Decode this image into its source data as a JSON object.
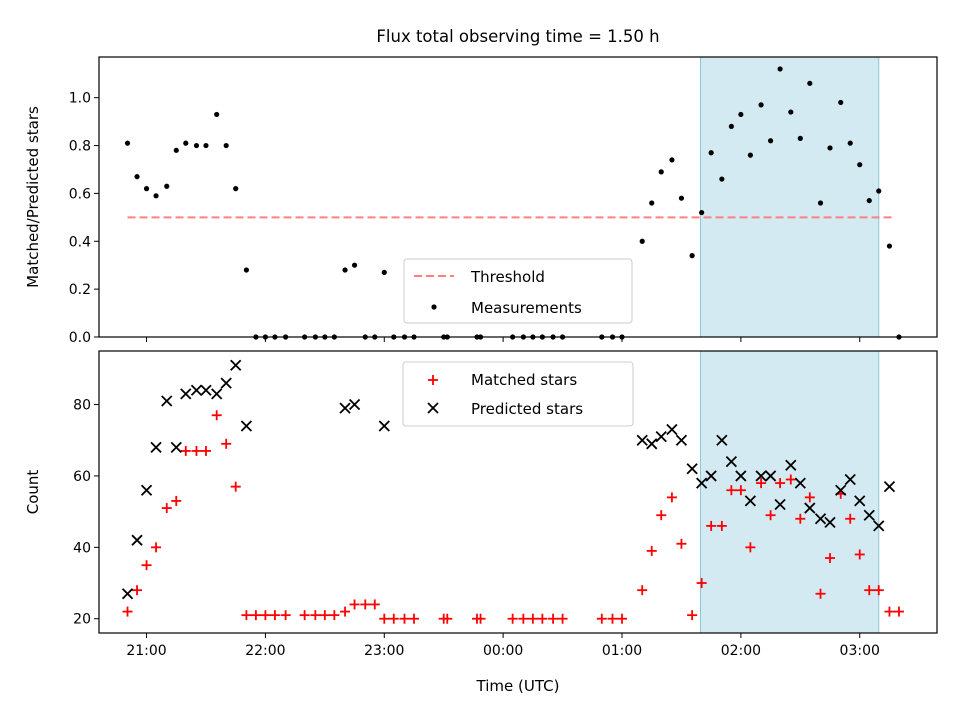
{
  "figure_title": "Flux total observing time = 1.50 h",
  "chart_data": [
    {
      "type": "scatter",
      "xlabel": "",
      "ylabel": "Matched/Predicted stars",
      "xlim_hours": [
        20.6,
        27.65
      ],
      "ylim": [
        0.0,
        1.17
      ],
      "yticks": [
        0.0,
        0.2,
        0.4,
        0.6,
        0.8,
        1.0
      ],
      "ytick_labels": [
        "0.0",
        "0.2",
        "0.4",
        "0.6",
        "0.8",
        "1.0"
      ],
      "shaded_x_range_hours": [
        25.66,
        27.16
      ],
      "shaded_color": "#add8e6",
      "legend_location": "lower center",
      "threshold": {
        "name": "Threshold",
        "y": 0.5,
        "x_range_hours": [
          20.84,
          27.28
        ],
        "color": "#ff8080",
        "style": "dashed"
      },
      "series": [
        {
          "name": "Measurements",
          "marker": "dot",
          "color": "#000000",
          "x_hours": [
            20.84,
            20.92,
            21.0,
            21.08,
            21.17,
            21.25,
            21.33,
            21.42,
            21.5,
            21.59,
            21.67,
            21.75,
            21.84,
            21.92,
            22.0,
            22.08,
            22.17,
            22.33,
            22.42,
            22.5,
            22.58,
            22.67,
            22.75,
            22.84,
            22.92,
            23.0,
            23.08,
            23.17,
            23.25,
            23.5,
            23.53,
            23.78,
            23.81,
            24.08,
            24.17,
            24.25,
            24.33,
            24.42,
            24.5,
            24.83,
            24.92,
            25.0,
            25.17,
            25.25,
            25.33,
            25.42,
            25.5,
            25.59,
            25.67,
            25.75,
            25.84,
            25.92,
            26.0,
            26.08,
            26.17,
            26.25,
            26.33,
            26.42,
            26.5,
            26.58,
            26.67,
            26.75,
            26.84,
            26.92,
            27.0,
            27.08,
            27.16,
            27.25,
            27.33
          ],
          "y": [
            0.81,
            0.67,
            0.62,
            0.59,
            0.63,
            0.78,
            0.81,
            0.8,
            0.8,
            0.93,
            0.8,
            0.62,
            0.28,
            0.0,
            0.0,
            0.0,
            0.0,
            0.0,
            0.0,
            0.0,
            0.0,
            0.28,
            0.3,
            0.0,
            0.0,
            0.27,
            0.0,
            0.0,
            0.0,
            0.0,
            0.0,
            0.0,
            0.0,
            0.0,
            0.0,
            0.0,
            0.0,
            0.0,
            0.0,
            0.0,
            0.0,
            0.0,
            0.4,
            0.56,
            0.69,
            0.74,
            0.58,
            0.34,
            0.52,
            0.77,
            0.66,
            0.88,
            0.93,
            0.76,
            0.97,
            0.82,
            1.12,
            0.94,
            0.83,
            1.06,
            0.56,
            0.79,
            0.98,
            0.81,
            0.72,
            0.57,
            0.61,
            0.38,
            0.0
          ]
        }
      ]
    },
    {
      "type": "scatter",
      "xlabel": "Time (UTC)",
      "ylabel": "Count",
      "xlim_hours": [
        20.6,
        27.65
      ],
      "ylim": [
        16,
        95
      ],
      "yticks": [
        20,
        40,
        60,
        80
      ],
      "ytick_labels": [
        "20",
        "40",
        "60",
        "80"
      ],
      "xticks_hours": [
        21,
        22,
        23,
        24,
        25,
        26,
        27
      ],
      "xtick_labels": [
        "21:00",
        "22:00",
        "23:00",
        "00:00",
        "01:00",
        "02:00",
        "03:00"
      ],
      "shaded_x_range_hours": [
        25.66,
        27.16
      ],
      "shaded_color": "#add8e6",
      "legend_location": "upper center",
      "series": [
        {
          "name": "Matched stars",
          "marker": "plus",
          "color": "#ff0000",
          "x_hours": [
            20.84,
            20.92,
            21.0,
            21.08,
            21.17,
            21.25,
            21.33,
            21.42,
            21.5,
            21.59,
            21.67,
            21.75,
            21.84,
            21.92,
            22.0,
            22.08,
            22.17,
            22.33,
            22.42,
            22.5,
            22.58,
            22.67,
            22.75,
            22.84,
            22.92,
            23.0,
            23.08,
            23.17,
            23.25,
            23.5,
            23.53,
            23.78,
            23.81,
            24.08,
            24.17,
            24.25,
            24.33,
            24.42,
            24.5,
            24.83,
            24.92,
            25.0,
            25.17,
            25.25,
            25.33,
            25.42,
            25.5,
            25.59,
            25.67,
            25.75,
            25.84,
            25.92,
            26.0,
            26.08,
            26.17,
            26.25,
            26.33,
            26.42,
            26.5,
            26.58,
            26.67,
            26.75,
            26.84,
            26.92,
            27.0,
            27.08,
            27.16,
            27.25,
            27.33
          ],
          "y": [
            22,
            28,
            35,
            40,
            51,
            53,
            67,
            67,
            67,
            77,
            69,
            57,
            21,
            21,
            21,
            21,
            21,
            21,
            21,
            21,
            21,
            22,
            24,
            24,
            24,
            20,
            20,
            20,
            20,
            20,
            20,
            20,
            20,
            20,
            20,
            20,
            20,
            20,
            20,
            20,
            20,
            20,
            28,
            39,
            49,
            54,
            41,
            21,
            30,
            46,
            46,
            56,
            56,
            40,
            58,
            49,
            58,
            59,
            48,
            54,
            27,
            37,
            55,
            48,
            38,
            28,
            28,
            22,
            22
          ]
        },
        {
          "name": "Predicted stars",
          "marker": "x",
          "color": "#000000",
          "x_hours": [
            20.84,
            20.92,
            21.0,
            21.08,
            21.17,
            21.25,
            21.33,
            21.42,
            21.5,
            21.59,
            21.67,
            21.75,
            21.84,
            22.67,
            22.75,
            23.0,
            25.17,
            25.25,
            25.33,
            25.42,
            25.5,
            25.59,
            25.67,
            25.75,
            25.84,
            25.92,
            26.0,
            26.08,
            26.17,
            26.25,
            26.33,
            26.42,
            26.5,
            26.58,
            26.67,
            26.75,
            26.84,
            26.92,
            27.0,
            27.08,
            27.16,
            27.25
          ],
          "y": [
            27,
            42,
            56,
            68,
            81,
            68,
            83,
            84,
            84,
            83,
            86,
            91,
            74,
            79,
            80,
            74,
            70,
            69,
            71,
            73,
            70,
            62,
            58,
            60,
            70,
            64,
            60,
            53,
            60,
            60,
            52,
            63,
            58,
            51,
            48,
            47,
            56,
            59,
            53,
            49,
            46,
            57
          ]
        }
      ]
    }
  ]
}
